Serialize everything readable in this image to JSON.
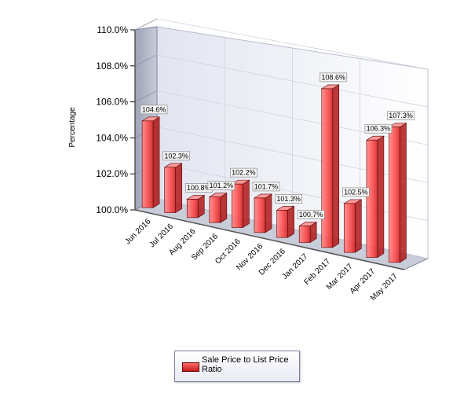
{
  "chart_data": {
    "type": "bar",
    "title": "",
    "xlabel": "",
    "ylabel": "Percentage",
    "categories": [
      "Jun 2016",
      "Jul 2016",
      "Aug 2016",
      "Sep 2016",
      "Oct 2016",
      "Nov 2016",
      "Dec 2016",
      "Jan 2017",
      "Feb 2017",
      "Mar 2017",
      "Apr 2017",
      "May 2017"
    ],
    "series": [
      {
        "name": "Sale Price to List Price Ratio",
        "values": [
          104.6,
          102.3,
          100.8,
          101.2,
          102.2,
          101.7,
          101.3,
          100.7,
          108.6,
          102.5,
          106.3,
          107.3
        ],
        "labels": [
          "104.6%",
          "102.3%",
          "100.8%",
          "101.2%",
          "102.2%",
          "101.7%",
          "101.3%",
          "100.7%",
          "108.6%",
          "102.5%",
          "106.3%",
          "107.3%"
        ],
        "color": "#e83030"
      }
    ],
    "ylim": [
      100,
      110
    ],
    "y_ticks": [
      "100.0%",
      "102.0%",
      "104.0%",
      "106.0%",
      "108.0%",
      "110.0%"
    ],
    "grid": true,
    "legend": "bottom-center",
    "style": "3d"
  }
}
